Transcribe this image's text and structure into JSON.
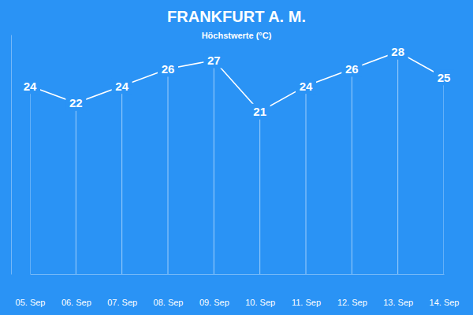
{
  "chart_data": {
    "type": "line",
    "title": "FRANKFURT A. M.",
    "subtitle": "Höchstwerte (°C)",
    "categories": [
      "05. Sep",
      "06. Sep",
      "07. Sep",
      "08. Sep",
      "09. Sep",
      "10. Sep",
      "11. Sep",
      "12. Sep",
      "13. Sep",
      "14. Sep"
    ],
    "values": [
      24,
      22,
      24,
      26,
      27,
      21,
      24,
      26,
      28,
      25
    ],
    "color": "#ffffff",
    "ylim": [
      2,
      30
    ],
    "data_labels": true,
    "tick_labels": "x"
  }
}
